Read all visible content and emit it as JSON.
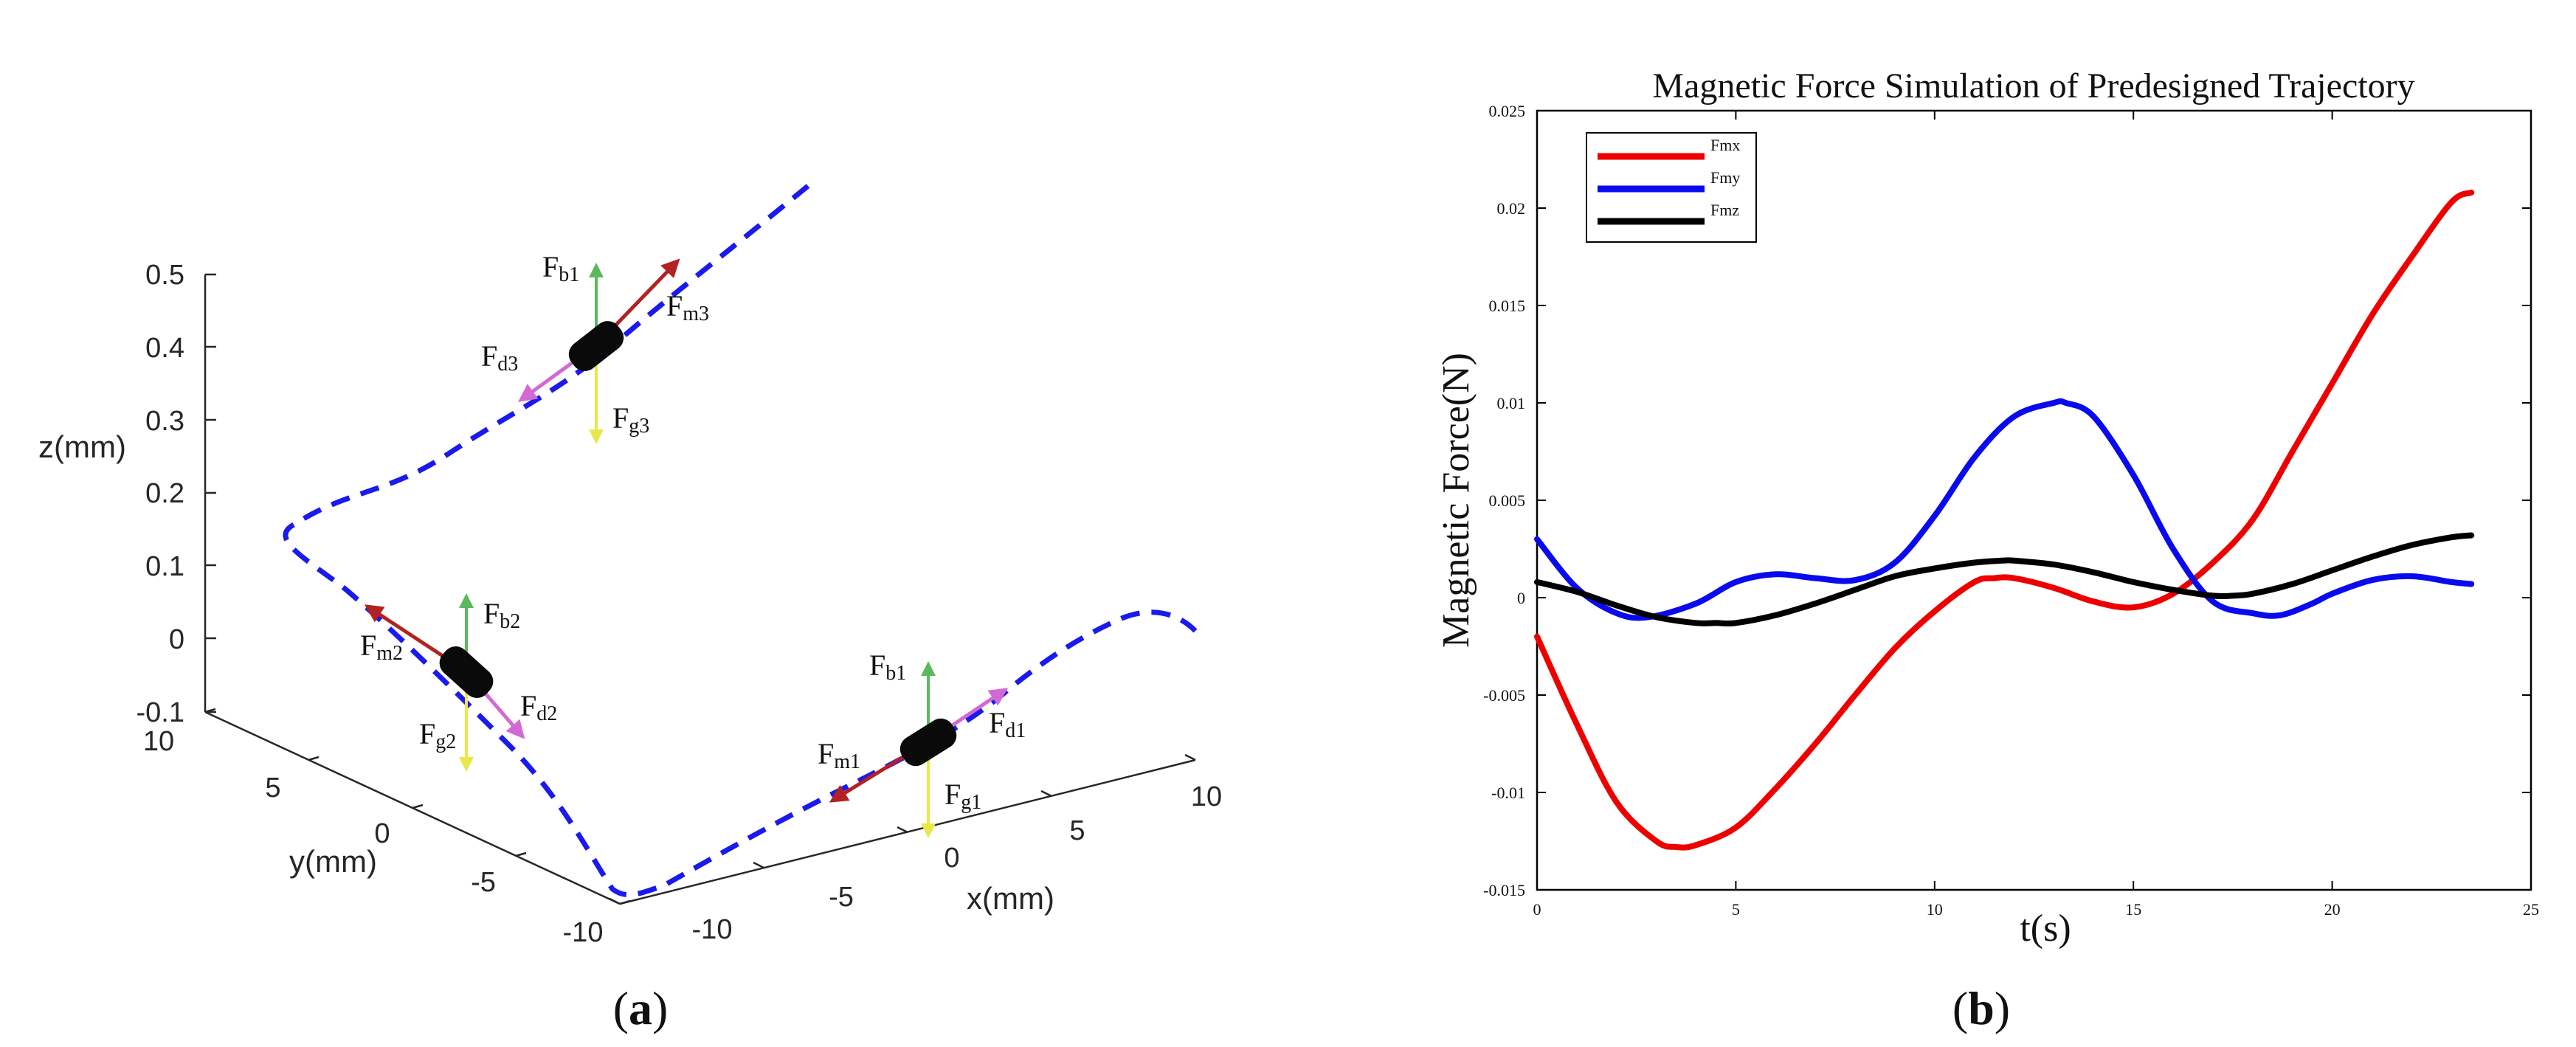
{
  "panel_a": {
    "label_open": "(",
    "label_letter": "a",
    "label_close": ")",
    "axes": {
      "z_label": "z(mm)",
      "y_label": "y(mm)",
      "x_label": "x(mm)",
      "z_ticks": [
        "0.5",
        "0.4",
        "0.3",
        "0.2",
        "0.1",
        "0",
        "-0.1"
      ],
      "y_ticks": [
        "10",
        "5",
        "0",
        "-5",
        "-10"
      ],
      "x_ticks": [
        "-10",
        "-5",
        "0",
        "5",
        "10"
      ]
    },
    "trajectory_color": "#1a1aee",
    "force_labels": {
      "capsule1": {
        "b": "F",
        "b_sub": "b1",
        "m": "F",
        "m_sub": "m1",
        "d": "F",
        "d_sub": "d1",
        "g": "F",
        "g_sub": "g1"
      },
      "capsule2": {
        "b": "F",
        "b_sub": "b2",
        "m": "F",
        "m_sub": "m2",
        "d": "F",
        "d_sub": "d2",
        "g": "F",
        "g_sub": "g2"
      },
      "capsule3": {
        "b": "F",
        "b_sub": "b1",
        "m": "F",
        "m_sub": "m3",
        "d": "F",
        "d_sub": "d3",
        "g": "F",
        "g_sub": "g3"
      }
    },
    "arrow_colors": {
      "buoyancy": "#5cb85c",
      "magnetic": "#b22222",
      "drag": "#d36ad3",
      "gravity": "#e8e84a"
    }
  },
  "panel_b": {
    "label_open": "(",
    "label_letter": "b",
    "label_close": ")"
  },
  "chart_data": {
    "type": "line",
    "title": "Magnetic Force Simulation of Predesigned Trajectory",
    "xlabel": "t(s)",
    "ylabel": "Magnetic Force(N)",
    "xlim": [
      0,
      25
    ],
    "ylim": [
      -0.015,
      0.025
    ],
    "xticks": [
      0,
      5,
      10,
      15,
      20,
      25
    ],
    "xtick_labels": [
      "0",
      "5",
      "10",
      "15",
      "20",
      "25"
    ],
    "yticks": [
      -0.015,
      -0.01,
      -0.005,
      0,
      0.005,
      0.01,
      0.015,
      0.02,
      0.025
    ],
    "ytick_labels": [
      "-0.015",
      "-0.01",
      "-0.005",
      "0",
      "0.005",
      "0.01",
      "0.015",
      "0.02",
      "0.025"
    ],
    "legend_position": "top-left",
    "series": [
      {
        "name": "Fmx",
        "color": "#ee0000",
        "x": [
          0,
          1,
          2,
          3,
          3.5,
          4,
          5,
          6,
          7,
          8,
          9,
          10,
          11,
          11.5,
          12,
          13,
          14,
          15,
          16,
          17,
          18,
          19,
          20,
          21,
          22,
          23,
          23.5
        ],
        "y": [
          -0.002,
          -0.0065,
          -0.0105,
          -0.0125,
          -0.0128,
          -0.0127,
          -0.0118,
          -0.0098,
          -0.0075,
          -0.005,
          -0.0026,
          -0.0007,
          0.0008,
          0.001,
          0.001,
          0.0005,
          -0.0002,
          -0.0005,
          0.0002,
          0.0018,
          0.004,
          0.0075,
          0.011,
          0.0145,
          0.0175,
          0.0203,
          0.0208
        ]
      },
      {
        "name": "Fmy",
        "color": "#0a0aee",
        "x": [
          0,
          1,
          2,
          2.8,
          4,
          5,
          6,
          7,
          8,
          9,
          10,
          11,
          12,
          13,
          13.3,
          14,
          15,
          16,
          17,
          18,
          18.7,
          19.5,
          20,
          21,
          22,
          23,
          23.5
        ],
        "y": [
          0.003,
          0.0005,
          -0.0008,
          -0.001,
          -0.0003,
          0.0008,
          0.0012,
          0.001,
          0.0009,
          0.0018,
          0.0042,
          0.0072,
          0.0093,
          0.01,
          0.01,
          0.0093,
          0.0063,
          0.0025,
          -0.0002,
          -0.0008,
          -0.0009,
          -0.0003,
          0.0002,
          0.0009,
          0.0011,
          0.0008,
          0.0007
        ]
      },
      {
        "name": "Fmz",
        "color": "#000000",
        "x": [
          0,
          1,
          2,
          3,
          4,
          4.5,
          5,
          6,
          7,
          8,
          9,
          10,
          11,
          11.7,
          12,
          13,
          14,
          15,
          16,
          17,
          17.5,
          18,
          19,
          20,
          21,
          22,
          23,
          23.5
        ],
        "y": [
          0.0008,
          0.0003,
          -0.0004,
          -0.001,
          -0.0013,
          -0.0013,
          -0.0013,
          -0.0009,
          -0.0003,
          0.0004,
          0.0011,
          0.0015,
          0.0018,
          0.0019,
          0.0019,
          0.0017,
          0.0013,
          0.0008,
          0.0004,
          0.0001,
          0.0001,
          0.0002,
          0.0007,
          0.0014,
          0.0021,
          0.0027,
          0.0031,
          0.0032
        ]
      }
    ]
  }
}
